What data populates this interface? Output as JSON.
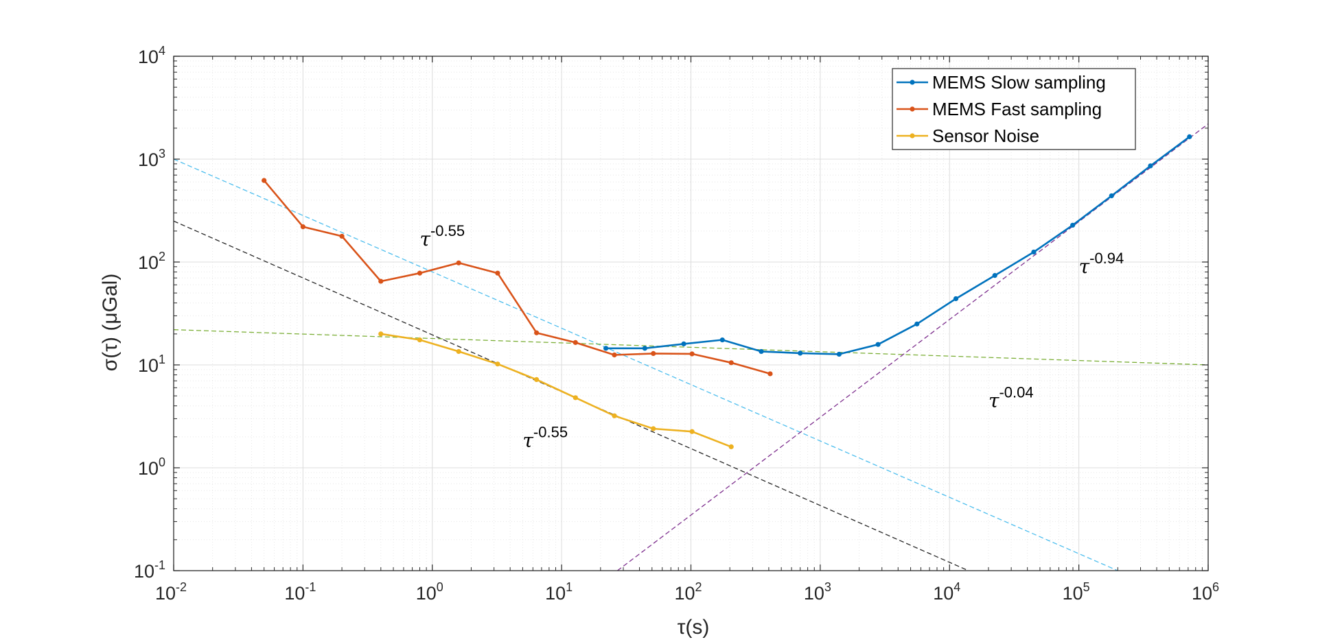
{
  "chart_data": {
    "type": "line",
    "xscale": "log",
    "yscale": "log",
    "xlim": [
      0.01,
      1000000
    ],
    "ylim": [
      0.1,
      10000
    ],
    "grid": true,
    "xlabel": "τ(s)",
    "ylabel": "σ(τ) (μGal)",
    "xticks": [
      {
        "base": "10",
        "exp": "-2",
        "value": 0.01
      },
      {
        "base": "10",
        "exp": "-1",
        "value": 0.1
      },
      {
        "base": "10",
        "exp": "0",
        "value": 1
      },
      {
        "base": "10",
        "exp": "1",
        "value": 10
      },
      {
        "base": "10",
        "exp": "2",
        "value": 100
      },
      {
        "base": "10",
        "exp": "3",
        "value": 1000
      },
      {
        "base": "10",
        "exp": "4",
        "value": 10000
      },
      {
        "base": "10",
        "exp": "5",
        "value": 100000
      },
      {
        "base": "10",
        "exp": "6",
        "value": 1000000
      }
    ],
    "yticks": [
      {
        "base": "10",
        "exp": "-1",
        "value": 0.1
      },
      {
        "base": "10",
        "exp": "0",
        "value": 1
      },
      {
        "base": "10",
        "exp": "1",
        "value": 10
      },
      {
        "base": "10",
        "exp": "2",
        "value": 100
      },
      {
        "base": "10",
        "exp": "3",
        "value": 1000
      },
      {
        "base": "10",
        "exp": "4",
        "value": 10000
      }
    ],
    "legend_position": "top-right",
    "series": [
      {
        "name": "MEMS Slow sampling",
        "color": "#0072BD",
        "points": [
          [
            22,
            14.5
          ],
          [
            44,
            14.5
          ],
          [
            88,
            16
          ],
          [
            175,
            17.5
          ],
          [
            350,
            13.5
          ],
          [
            700,
            13
          ],
          [
            1400,
            12.7
          ],
          [
            2800,
            15.8
          ],
          [
            5600,
            25
          ],
          [
            11200,
            44
          ],
          [
            22400,
            74
          ],
          [
            44800,
            125
          ],
          [
            89600,
            228
          ],
          [
            179000,
            440
          ],
          [
            358000,
            860
          ],
          [
            717000,
            1650
          ]
        ]
      },
      {
        "name": "MEMS Fast sampling",
        "color": "#D95319",
        "points": [
          [
            0.05,
            620
          ],
          [
            0.1,
            220
          ],
          [
            0.2,
            178
          ],
          [
            0.4,
            65
          ],
          [
            0.8,
            78
          ],
          [
            1.6,
            98
          ],
          [
            3.2,
            78
          ],
          [
            6.4,
            20.5
          ],
          [
            12.8,
            16.5
          ],
          [
            25.6,
            12.5
          ],
          [
            51.2,
            12.9
          ],
          [
            102,
            12.8
          ],
          [
            205,
            10.5
          ],
          [
            410,
            8.2
          ]
        ]
      },
      {
        "name": "Sensor Noise",
        "color": "#EDB120",
        "points": [
          [
            0.4,
            20
          ],
          [
            0.8,
            17.5
          ],
          [
            1.6,
            13.5
          ],
          [
            3.2,
            10.2
          ],
          [
            6.4,
            7.2
          ],
          [
            12.8,
            4.8
          ],
          [
            25.6,
            3.2
          ],
          [
            51.2,
            2.4
          ],
          [
            102,
            2.25
          ],
          [
            205,
            1.6
          ]
        ]
      }
    ],
    "reference_lines": [
      {
        "color": "#4DBEEE",
        "points": [
          [
            0.01,
            1000
          ],
          [
            200000,
            0.1
          ]
        ]
      },
      {
        "color": "#262626",
        "points": [
          [
            0.01,
            250
          ],
          [
            14000,
            0.1
          ]
        ]
      },
      {
        "color": "#77AC30",
        "points": [
          [
            0.01,
            22
          ],
          [
            1000000,
            10
          ]
        ]
      },
      {
        "color": "#7E2F8E",
        "points": [
          [
            27,
            0.1
          ],
          [
            1000000,
            2200
          ]
        ]
      }
    ],
    "annotations": [
      {
        "base": "τ",
        "exp": "-0.55",
        "x": 0.8,
        "y": 145
      },
      {
        "base": "τ",
        "exp": "-0.94",
        "x": 100000,
        "y": 78
      },
      {
        "base": "τ",
        "exp": "-0.04",
        "x": 20000,
        "y": 3.9
      },
      {
        "base": "τ",
        "exp": "-0.55",
        "x": 5,
        "y": 1.6
      }
    ]
  }
}
